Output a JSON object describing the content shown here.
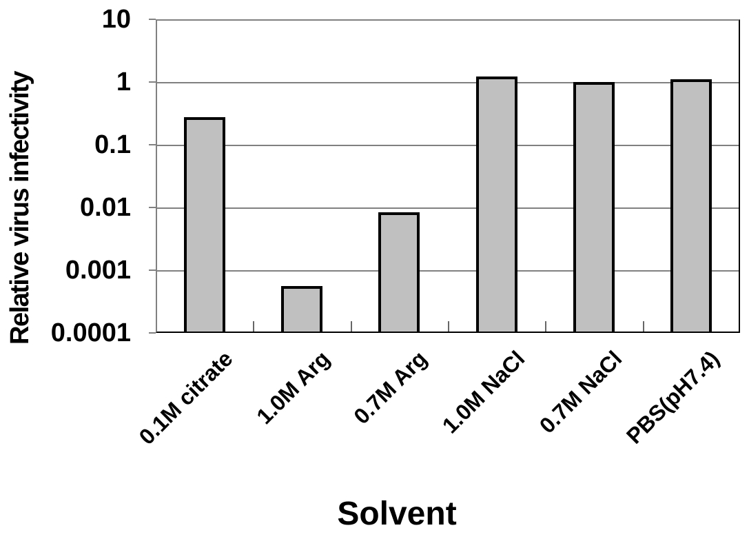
{
  "chart_data": {
    "type": "bar",
    "title": "",
    "xlabel": "Solvent",
    "ylabel": "Relative virus infectivity",
    "y_scale": "log",
    "ylim": [
      0.0001,
      10
    ],
    "yticks": [
      10,
      1,
      0.1,
      0.01,
      0.001,
      0.0001
    ],
    "ytick_labels": [
      "10",
      "1",
      "0.1",
      "0.01",
      "0.001",
      "0.0001"
    ],
    "categories": [
      "0.1M citrate",
      "1.0M Arg",
      "0.7M Arg",
      "1.0M NaCl",
      "0.7M NaCl",
      "PBS(pH7.4)"
    ],
    "values": [
      0.25,
      0.0005,
      0.0075,
      1.1,
      0.9,
      1.0
    ],
    "grid": true,
    "legend": false,
    "colors": {
      "background": "#FFFFFF",
      "bar_fill": "#C0C0C0",
      "bar_border": "#000000",
      "gridline": "#808080",
      "axis": "#000000",
      "text": "#000000"
    }
  }
}
